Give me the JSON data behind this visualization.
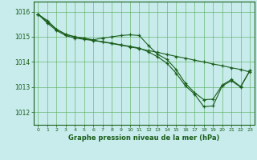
{
  "title": "Graphe pression niveau de la mer (hPa)",
  "background_color": "#c8ecec",
  "line_color": "#1a5e1a",
  "grid_color": "#55aa55",
  "xlim": [
    -0.5,
    23.5
  ],
  "ylim": [
    1011.5,
    1016.4
  ],
  "yticks": [
    1012,
    1013,
    1014,
    1015,
    1016
  ],
  "xticks": [
    0,
    1,
    2,
    3,
    4,
    5,
    6,
    7,
    8,
    9,
    10,
    11,
    12,
    13,
    14,
    15,
    16,
    17,
    18,
    19,
    20,
    21,
    22,
    23
  ],
  "line1_x": [
    0,
    1,
    2,
    3,
    4,
    5,
    6,
    7,
    8,
    9,
    10,
    11,
    12,
    13,
    14,
    15,
    16,
    17,
    18,
    19,
    20,
    21,
    22,
    23
  ],
  "line1_y": [
    1015.9,
    1015.6,
    1015.3,
    1015.1,
    1015.0,
    1014.93,
    1014.87,
    1014.8,
    1014.73,
    1014.67,
    1014.6,
    1014.53,
    1014.45,
    1014.38,
    1014.3,
    1014.22,
    1014.15,
    1014.07,
    1014.0,
    1013.92,
    1013.85,
    1013.77,
    1013.7,
    1013.6
  ],
  "line2_x": [
    0,
    1,
    2,
    3,
    4,
    5,
    6,
    7,
    8,
    9,
    10,
    11,
    12,
    13,
    14,
    15,
    16,
    17,
    18,
    19,
    20,
    21,
    22,
    23
  ],
  "line2_y": [
    1015.9,
    1015.65,
    1015.3,
    1015.1,
    1015.0,
    1014.95,
    1014.88,
    1014.95,
    1015.0,
    1015.05,
    1015.08,
    1015.05,
    1014.65,
    1014.3,
    1014.1,
    1013.7,
    1013.15,
    1012.78,
    1012.5,
    1012.52,
    1013.08,
    1013.3,
    1013.02,
    1013.65
  ],
  "line3_x": [
    0,
    1,
    2,
    3,
    4,
    5,
    6,
    7,
    8,
    9,
    10,
    11,
    12,
    13,
    14,
    15,
    16,
    17,
    18,
    19,
    20,
    21,
    22,
    23
  ],
  "line3_y": [
    1015.9,
    1015.55,
    1015.25,
    1015.05,
    1014.95,
    1014.9,
    1014.85,
    1014.8,
    1014.75,
    1014.68,
    1014.62,
    1014.55,
    1014.4,
    1014.2,
    1013.95,
    1013.55,
    1013.05,
    1012.72,
    1012.22,
    1012.25,
    1013.05,
    1013.25,
    1013.0,
    1013.65
  ]
}
